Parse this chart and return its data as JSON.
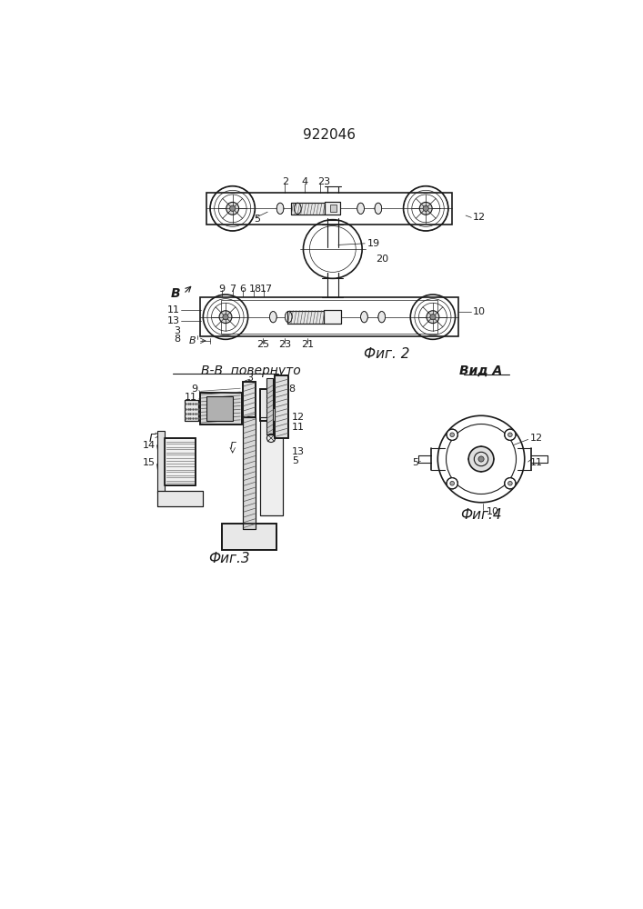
{
  "title": "922046",
  "bg_color": "#ffffff",
  "line_color": "#1a1a1a",
  "fig2_label": "Фиг. 2",
  "fig3_label": "Фиг.3",
  "fig4_label": "Фиг.4",
  "view_bb_label": "В-В  повернуто",
  "view_a_label": "Вид А"
}
